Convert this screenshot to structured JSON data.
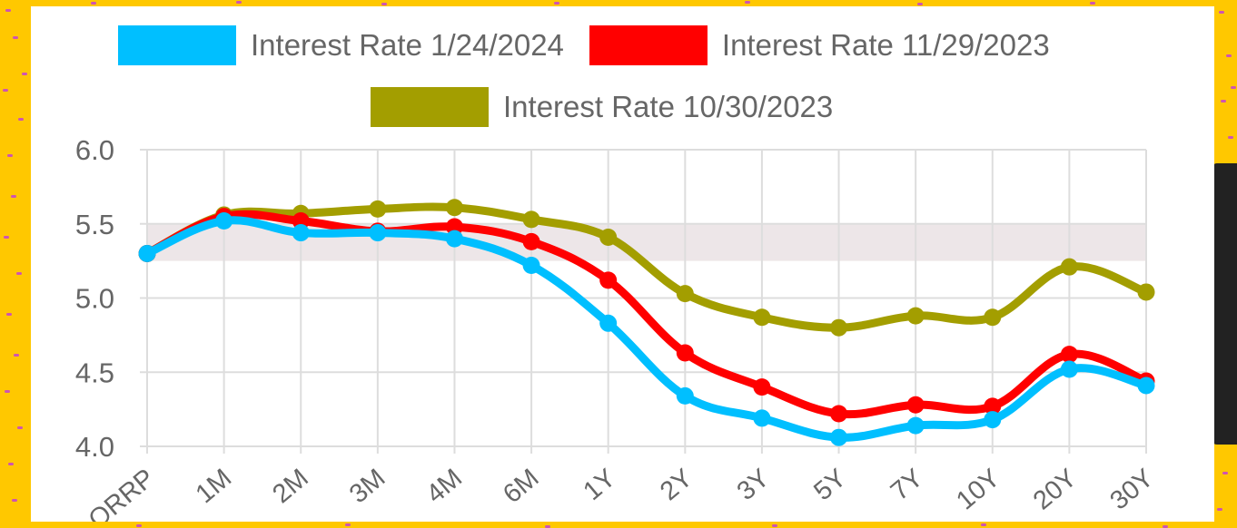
{
  "chart_data": {
    "type": "line",
    "categories": [
      "ORRP",
      "1M",
      "2M",
      "3M",
      "4M",
      "6M",
      "1Y",
      "2Y",
      "3Y",
      "5Y",
      "7Y",
      "10Y",
      "20Y",
      "30Y"
    ],
    "series": [
      {
        "name": "Interest Rate 1/24/2024",
        "color": "#00BFFF",
        "values": [
          5.3,
          5.52,
          5.44,
          5.44,
          5.4,
          5.22,
          4.83,
          4.34,
          4.19,
          4.06,
          4.14,
          4.18,
          4.52,
          4.41
        ]
      },
      {
        "name": "Interest Rate 11/29/2023",
        "color": "#FF0000",
        "values": [
          5.3,
          5.55,
          5.52,
          5.45,
          5.48,
          5.38,
          5.12,
          4.63,
          4.4,
          4.22,
          4.28,
          4.27,
          4.62,
          4.44
        ]
      },
      {
        "name": "Interest Rate 10/30/2023",
        "color": "#A39E00",
        "values": [
          5.3,
          5.56,
          5.57,
          5.6,
          5.61,
          5.53,
          5.41,
          5.03,
          4.87,
          4.8,
          4.88,
          4.87,
          5.21,
          5.04
        ]
      }
    ],
    "title": "",
    "xlabel": "",
    "ylabel": "",
    "ylim": [
      4.0,
      6.0
    ],
    "yticks": [
      "6.0",
      "5.5",
      "5.0",
      "4.5",
      "4.0"
    ],
    "band": {
      "from": 5.25,
      "to": 5.5,
      "color": "#EDE6E8"
    },
    "grid": true,
    "legend_position": "top"
  }
}
